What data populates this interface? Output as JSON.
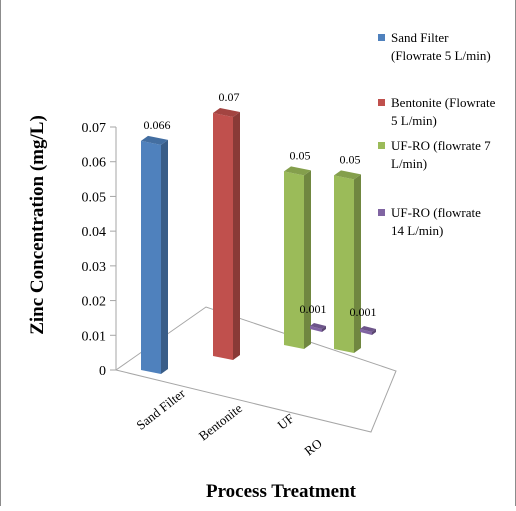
{
  "chart_data": {
    "type": "bar",
    "style": "3d-column",
    "categories": [
      "Sand Filter",
      "Bentonite",
      "UF",
      "RO"
    ],
    "ylabel": "Zinc Concentration (mg/L)",
    "xlabel": "Process Treatment",
    "yticks": [
      "0",
      "0.01",
      "0.02",
      "0.03",
      "0.04",
      "0.05",
      "0.06",
      "0.07"
    ],
    "ylim": [
      0,
      0.07
    ],
    "legend_position": "right",
    "series": [
      {
        "name": "Sand Filter (Flowrate 5 L/min)",
        "legend_lines": [
          "Sand Filter",
          "(Flowrate 5 L/min)"
        ],
        "values": [
          0.066,
          null,
          null,
          null
        ],
        "labels": [
          "0.066",
          "",
          "",
          ""
        ],
        "color": "#4f81bd"
      },
      {
        "name": "Bentonite (Flowrate 5 L/min)",
        "legend_lines": [
          "Bentonite (Flowrate",
          "5 L/min)"
        ],
        "values": [
          null,
          0.07,
          null,
          null
        ],
        "labels": [
          "",
          "0.07",
          "",
          ""
        ],
        "color": "#c0504d"
      },
      {
        "name": "UF-RO (flowrate 7 L/min)",
        "legend_lines": [
          "UF-RO (flowrate 7",
          "L/min)"
        ],
        "values": [
          null,
          null,
          0.05,
          0.05
        ],
        "labels": [
          "",
          "",
          "0.05",
          "0.05"
        ],
        "color": "#9bbb59"
      },
      {
        "name": "UF-RO (flowrate 14 L/min)",
        "legend_lines": [
          "UF-RO (flowrate",
          "14 L/min)"
        ],
        "values": [
          null,
          null,
          0.001,
          0.001
        ],
        "labels": [
          "",
          "",
          "0.001",
          "0.001"
        ],
        "color": "#8064a2"
      }
    ]
  }
}
